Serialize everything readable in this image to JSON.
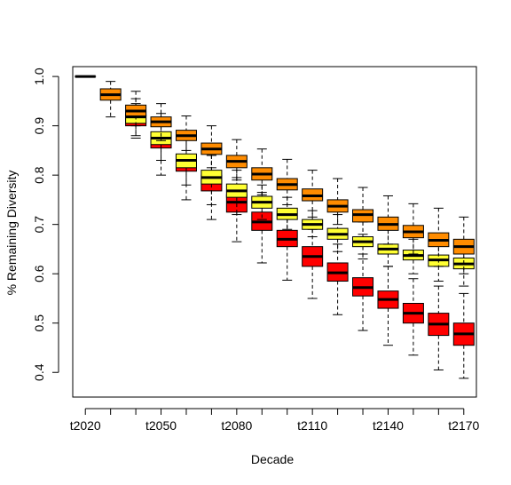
{
  "chart_data": {
    "type": "box",
    "xlabel": "Decade",
    "ylabel": "% Remaining Diversity",
    "ylim": [
      0.35,
      1.02
    ],
    "yticks": [
      "0.4",
      "0.5",
      "0.6",
      "0.7",
      "0.8",
      "0.9",
      "1.0"
    ],
    "xtick_labels": [
      "t2020",
      "t2050",
      "t2080",
      "t2110",
      "t2140",
      "t2170"
    ],
    "colors": {
      "scenario_a": "#ff0000",
      "scenario_b": "#ffff33",
      "scenario_c": "#ff8c00"
    },
    "boxes": [
      {
        "pos": 1,
        "scenario": "c",
        "min": 1.0,
        "q1": 1.0,
        "median": 1.0,
        "q3": 1.0,
        "max": 1.0
      },
      {
        "pos": 2,
        "scenario": "c",
        "min": 0.918,
        "q1": 0.952,
        "median": 0.963,
        "q3": 0.975,
        "max": 0.99
      },
      {
        "pos": 3,
        "scenario": "a",
        "min": 0.875,
        "q1": 0.9,
        "median": 0.91,
        "q3": 0.922,
        "max": 0.945
      },
      {
        "pos": 3,
        "scenario": "b",
        "min": 0.88,
        "q1": 0.905,
        "median": 0.918,
        "q3": 0.93,
        "max": 0.955
      },
      {
        "pos": 3,
        "scenario": "c",
        "min": 0.9,
        "q1": 0.92,
        "median": 0.93,
        "q3": 0.942,
        "max": 0.97
      },
      {
        "pos": 4,
        "scenario": "a",
        "min": 0.8,
        "q1": 0.855,
        "median": 0.868,
        "q3": 0.88,
        "max": 0.915
      },
      {
        "pos": 4,
        "scenario": "b",
        "min": 0.83,
        "q1": 0.862,
        "median": 0.875,
        "q3": 0.888,
        "max": 0.925
      },
      {
        "pos": 4,
        "scenario": "c",
        "min": 0.87,
        "q1": 0.898,
        "median": 0.908,
        "q3": 0.918,
        "max": 0.945
      },
      {
        "pos": 5,
        "scenario": "a",
        "min": 0.75,
        "q1": 0.808,
        "median": 0.825,
        "q3": 0.84,
        "max": 0.875
      },
      {
        "pos": 5,
        "scenario": "b",
        "min": 0.78,
        "q1": 0.815,
        "median": 0.83,
        "q3": 0.843,
        "max": 0.88
      },
      {
        "pos": 5,
        "scenario": "c",
        "min": 0.85,
        "q1": 0.87,
        "median": 0.88,
        "q3": 0.891,
        "max": 0.92
      },
      {
        "pos": 6,
        "scenario": "a",
        "min": 0.71,
        "q1": 0.768,
        "median": 0.785,
        "q3": 0.8,
        "max": 0.84
      },
      {
        "pos": 6,
        "scenario": "b",
        "min": 0.74,
        "q1": 0.782,
        "median": 0.795,
        "q3": 0.81,
        "max": 0.84
      },
      {
        "pos": 6,
        "scenario": "c",
        "min": 0.815,
        "q1": 0.842,
        "median": 0.853,
        "q3": 0.865,
        "max": 0.9
      },
      {
        "pos": 7,
        "scenario": "a",
        "min": 0.665,
        "q1": 0.725,
        "median": 0.745,
        "q3": 0.76,
        "max": 0.795
      },
      {
        "pos": 7,
        "scenario": "b",
        "min": 0.72,
        "q1": 0.755,
        "median": 0.768,
        "q3": 0.782,
        "max": 0.81
      },
      {
        "pos": 7,
        "scenario": "c",
        "min": 0.79,
        "q1": 0.815,
        "median": 0.828,
        "q3": 0.84,
        "max": 0.872
      },
      {
        "pos": 8,
        "scenario": "a",
        "min": 0.622,
        "q1": 0.688,
        "median": 0.705,
        "q3": 0.725,
        "max": 0.765
      },
      {
        "pos": 8,
        "scenario": "b",
        "min": 0.71,
        "q1": 0.733,
        "median": 0.745,
        "q3": 0.757,
        "max": 0.78
      },
      {
        "pos": 8,
        "scenario": "c",
        "min": 0.76,
        "q1": 0.79,
        "median": 0.802,
        "q3": 0.815,
        "max": 0.853
      },
      {
        "pos": 9,
        "scenario": "a",
        "min": 0.587,
        "q1": 0.655,
        "median": 0.67,
        "q3": 0.688,
        "max": 0.725
      },
      {
        "pos": 9,
        "scenario": "b",
        "min": 0.69,
        "q1": 0.71,
        "median": 0.72,
        "q3": 0.733,
        "max": 0.755
      },
      {
        "pos": 9,
        "scenario": "c",
        "min": 0.74,
        "q1": 0.77,
        "median": 0.781,
        "q3": 0.793,
        "max": 0.832
      },
      {
        "pos": 10,
        "scenario": "a",
        "min": 0.55,
        "q1": 0.615,
        "median": 0.635,
        "q3": 0.655,
        "max": 0.69
      },
      {
        "pos": 10,
        "scenario": "b",
        "min": 0.675,
        "q1": 0.69,
        "median": 0.7,
        "q3": 0.71,
        "max": 0.728
      },
      {
        "pos": 10,
        "scenario": "c",
        "min": 0.715,
        "q1": 0.748,
        "median": 0.758,
        "q3": 0.772,
        "max": 0.81
      },
      {
        "pos": 11,
        "scenario": "a",
        "min": 0.517,
        "q1": 0.585,
        "median": 0.602,
        "q3": 0.622,
        "max": 0.66
      },
      {
        "pos": 11,
        "scenario": "b",
        "min": 0.645,
        "q1": 0.67,
        "median": 0.68,
        "q3": 0.692,
        "max": 0.72
      },
      {
        "pos": 11,
        "scenario": "c",
        "min": 0.7,
        "q1": 0.725,
        "median": 0.737,
        "q3": 0.75,
        "max": 0.793
      },
      {
        "pos": 12,
        "scenario": "a",
        "min": 0.485,
        "q1": 0.555,
        "median": 0.572,
        "q3": 0.592,
        "max": 0.64
      },
      {
        "pos": 12,
        "scenario": "b",
        "min": 0.63,
        "q1": 0.655,
        "median": 0.665,
        "q3": 0.675,
        "max": 0.705
      },
      {
        "pos": 12,
        "scenario": "c",
        "min": 0.68,
        "q1": 0.705,
        "median": 0.72,
        "q3": 0.73,
        "max": 0.775
      },
      {
        "pos": 13,
        "scenario": "a",
        "min": 0.455,
        "q1": 0.53,
        "median": 0.548,
        "q3": 0.565,
        "max": 0.615
      },
      {
        "pos": 13,
        "scenario": "b",
        "min": 0.615,
        "q1": 0.64,
        "median": 0.65,
        "q3": 0.66,
        "max": 0.69
      },
      {
        "pos": 13,
        "scenario": "c",
        "min": 0.66,
        "q1": 0.688,
        "median": 0.7,
        "q3": 0.715,
        "max": 0.758
      },
      {
        "pos": 14,
        "scenario": "a",
        "min": 0.435,
        "q1": 0.5,
        "median": 0.52,
        "q3": 0.54,
        "max": 0.59
      },
      {
        "pos": 14,
        "scenario": "b",
        "min": 0.6,
        "q1": 0.628,
        "median": 0.637,
        "q3": 0.648,
        "max": 0.67
      },
      {
        "pos": 14,
        "scenario": "c",
        "min": 0.64,
        "q1": 0.673,
        "median": 0.685,
        "q3": 0.698,
        "max": 0.742
      },
      {
        "pos": 15,
        "scenario": "a",
        "min": 0.405,
        "q1": 0.475,
        "median": 0.498,
        "q3": 0.52,
        "max": 0.575
      },
      {
        "pos": 15,
        "scenario": "b",
        "min": 0.585,
        "q1": 0.615,
        "median": 0.628,
        "q3": 0.638,
        "max": 0.665
      },
      {
        "pos": 15,
        "scenario": "c",
        "min": 0.615,
        "q1": 0.655,
        "median": 0.668,
        "q3": 0.683,
        "max": 0.733
      },
      {
        "pos": 16,
        "scenario": "a",
        "min": 0.388,
        "q1": 0.455,
        "median": 0.478,
        "q3": 0.5,
        "max": 0.56
      },
      {
        "pos": 16,
        "scenario": "b",
        "min": 0.575,
        "q1": 0.61,
        "median": 0.62,
        "q3": 0.632,
        "max": 0.66
      },
      {
        "pos": 16,
        "scenario": "c",
        "min": 0.6,
        "q1": 0.64,
        "median": 0.655,
        "q3": 0.67,
        "max": 0.715
      }
    ]
  }
}
